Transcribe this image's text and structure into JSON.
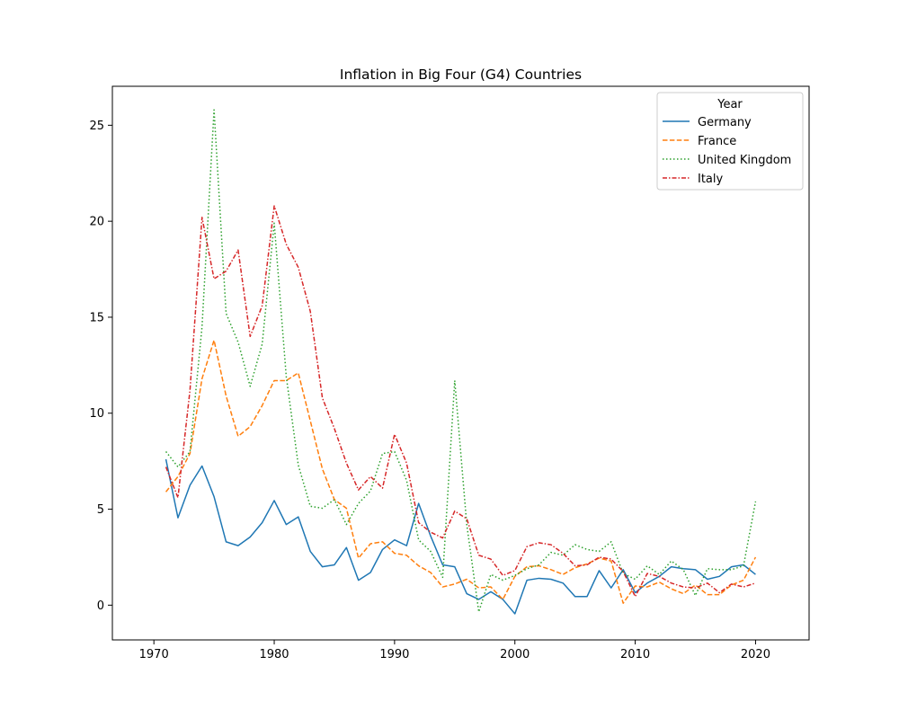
{
  "chart_data": {
    "type": "line",
    "title": "Inflation in Big Four (G4) Countries",
    "xlabel": "",
    "ylabel": "",
    "xlim": [
      1966.55,
      2024.45
    ],
    "ylim": [
      -1.81,
      27.03
    ],
    "xticks": [
      1970,
      1980,
      1990,
      2000,
      2010,
      2020
    ],
    "yticks": [
      0,
      5,
      10,
      15,
      20,
      25
    ],
    "grid": false,
    "legend": {
      "title": "Year",
      "placement": "top-right"
    },
    "x": [
      1971,
      1972,
      1973,
      1974,
      1975,
      1976,
      1977,
      1978,
      1979,
      1980,
      1981,
      1982,
      1983,
      1984,
      1985,
      1986,
      1987,
      1988,
      1989,
      1990,
      1991,
      1992,
      1993,
      1994,
      1995,
      1996,
      1997,
      1998,
      1999,
      2000,
      2001,
      2002,
      2003,
      2004,
      2005,
      2006,
      2007,
      2008,
      2009,
      2010,
      2011,
      2012,
      2013,
      2014,
      2015,
      2016,
      2017,
      2018,
      2019,
      2020
    ],
    "series": [
      {
        "name": "Germany",
        "color": "#1f77b4",
        "dash": "solid",
        "values": [
          7.6,
          4.55,
          6.25,
          7.25,
          5.65,
          3.3,
          3.1,
          3.55,
          4.3,
          5.45,
          4.2,
          4.6,
          2.8,
          2.0,
          2.1,
          3.0,
          1.3,
          1.7,
          2.9,
          3.4,
          3.1,
          5.3,
          3.6,
          2.1,
          2.0,
          0.6,
          0.3,
          0.7,
          0.3,
          -0.45,
          1.3,
          1.4,
          1.35,
          1.15,
          0.45,
          0.45,
          1.8,
          0.9,
          1.85,
          0.65,
          1.15,
          1.5,
          2.0,
          1.9,
          1.85,
          1.35,
          1.5,
          2.0,
          2.1,
          1.6
        ]
      },
      {
        "name": "France",
        "color": "#ff7f0e",
        "dash": "dashed",
        "values": [
          5.9,
          6.7,
          7.9,
          11.8,
          13.8,
          10.9,
          8.8,
          9.3,
          10.4,
          11.7,
          11.7,
          12.1,
          9.6,
          7.1,
          5.5,
          5.05,
          2.45,
          3.2,
          3.3,
          2.7,
          2.6,
          2.05,
          1.7,
          0.95,
          1.1,
          1.35,
          0.9,
          0.95,
          0.3,
          1.5,
          2.0,
          2.05,
          1.85,
          1.6,
          1.95,
          2.15,
          2.45,
          2.3,
          0.1,
          1.0,
          0.95,
          1.2,
          0.85,
          0.6,
          1.05,
          0.55,
          0.55,
          1.05,
          1.3,
          2.5
        ]
      },
      {
        "name": "United Kingdom",
        "color": "#2ca02c",
        "dash": "dotted",
        "values": [
          8.0,
          7.2,
          8.0,
          14.5,
          25.8,
          15.2,
          13.7,
          11.4,
          13.6,
          19.9,
          11.9,
          7.3,
          5.15,
          5.05,
          5.5,
          4.2,
          5.3,
          5.95,
          7.9,
          8.0,
          6.5,
          3.4,
          2.8,
          1.45,
          11.7,
          4.2,
          -0.35,
          1.6,
          1.3,
          1.55,
          1.9,
          2.1,
          2.75,
          2.6,
          3.15,
          2.9,
          2.8,
          3.3,
          1.65,
          1.35,
          2.05,
          1.6,
          2.3,
          1.85,
          0.5,
          1.9,
          1.85,
          1.85,
          2.05,
          5.4
        ]
      },
      {
        "name": "Italy",
        "color": "#d62728",
        "dash": "dashdot",
        "values": [
          7.2,
          5.6,
          11.2,
          20.2,
          17.0,
          17.4,
          18.5,
          14.0,
          15.6,
          20.8,
          18.8,
          17.6,
          15.3,
          10.8,
          9.2,
          7.4,
          6.0,
          6.7,
          6.1,
          8.9,
          7.4,
          4.3,
          3.8,
          3.5,
          4.9,
          4.5,
          2.6,
          2.4,
          1.55,
          1.8,
          3.05,
          3.25,
          3.15,
          2.7,
          2.05,
          2.1,
          2.5,
          2.4,
          1.75,
          0.45,
          1.65,
          1.5,
          1.15,
          0.95,
          0.9,
          1.15,
          0.65,
          1.1,
          0.95,
          1.15
        ]
      }
    ]
  }
}
